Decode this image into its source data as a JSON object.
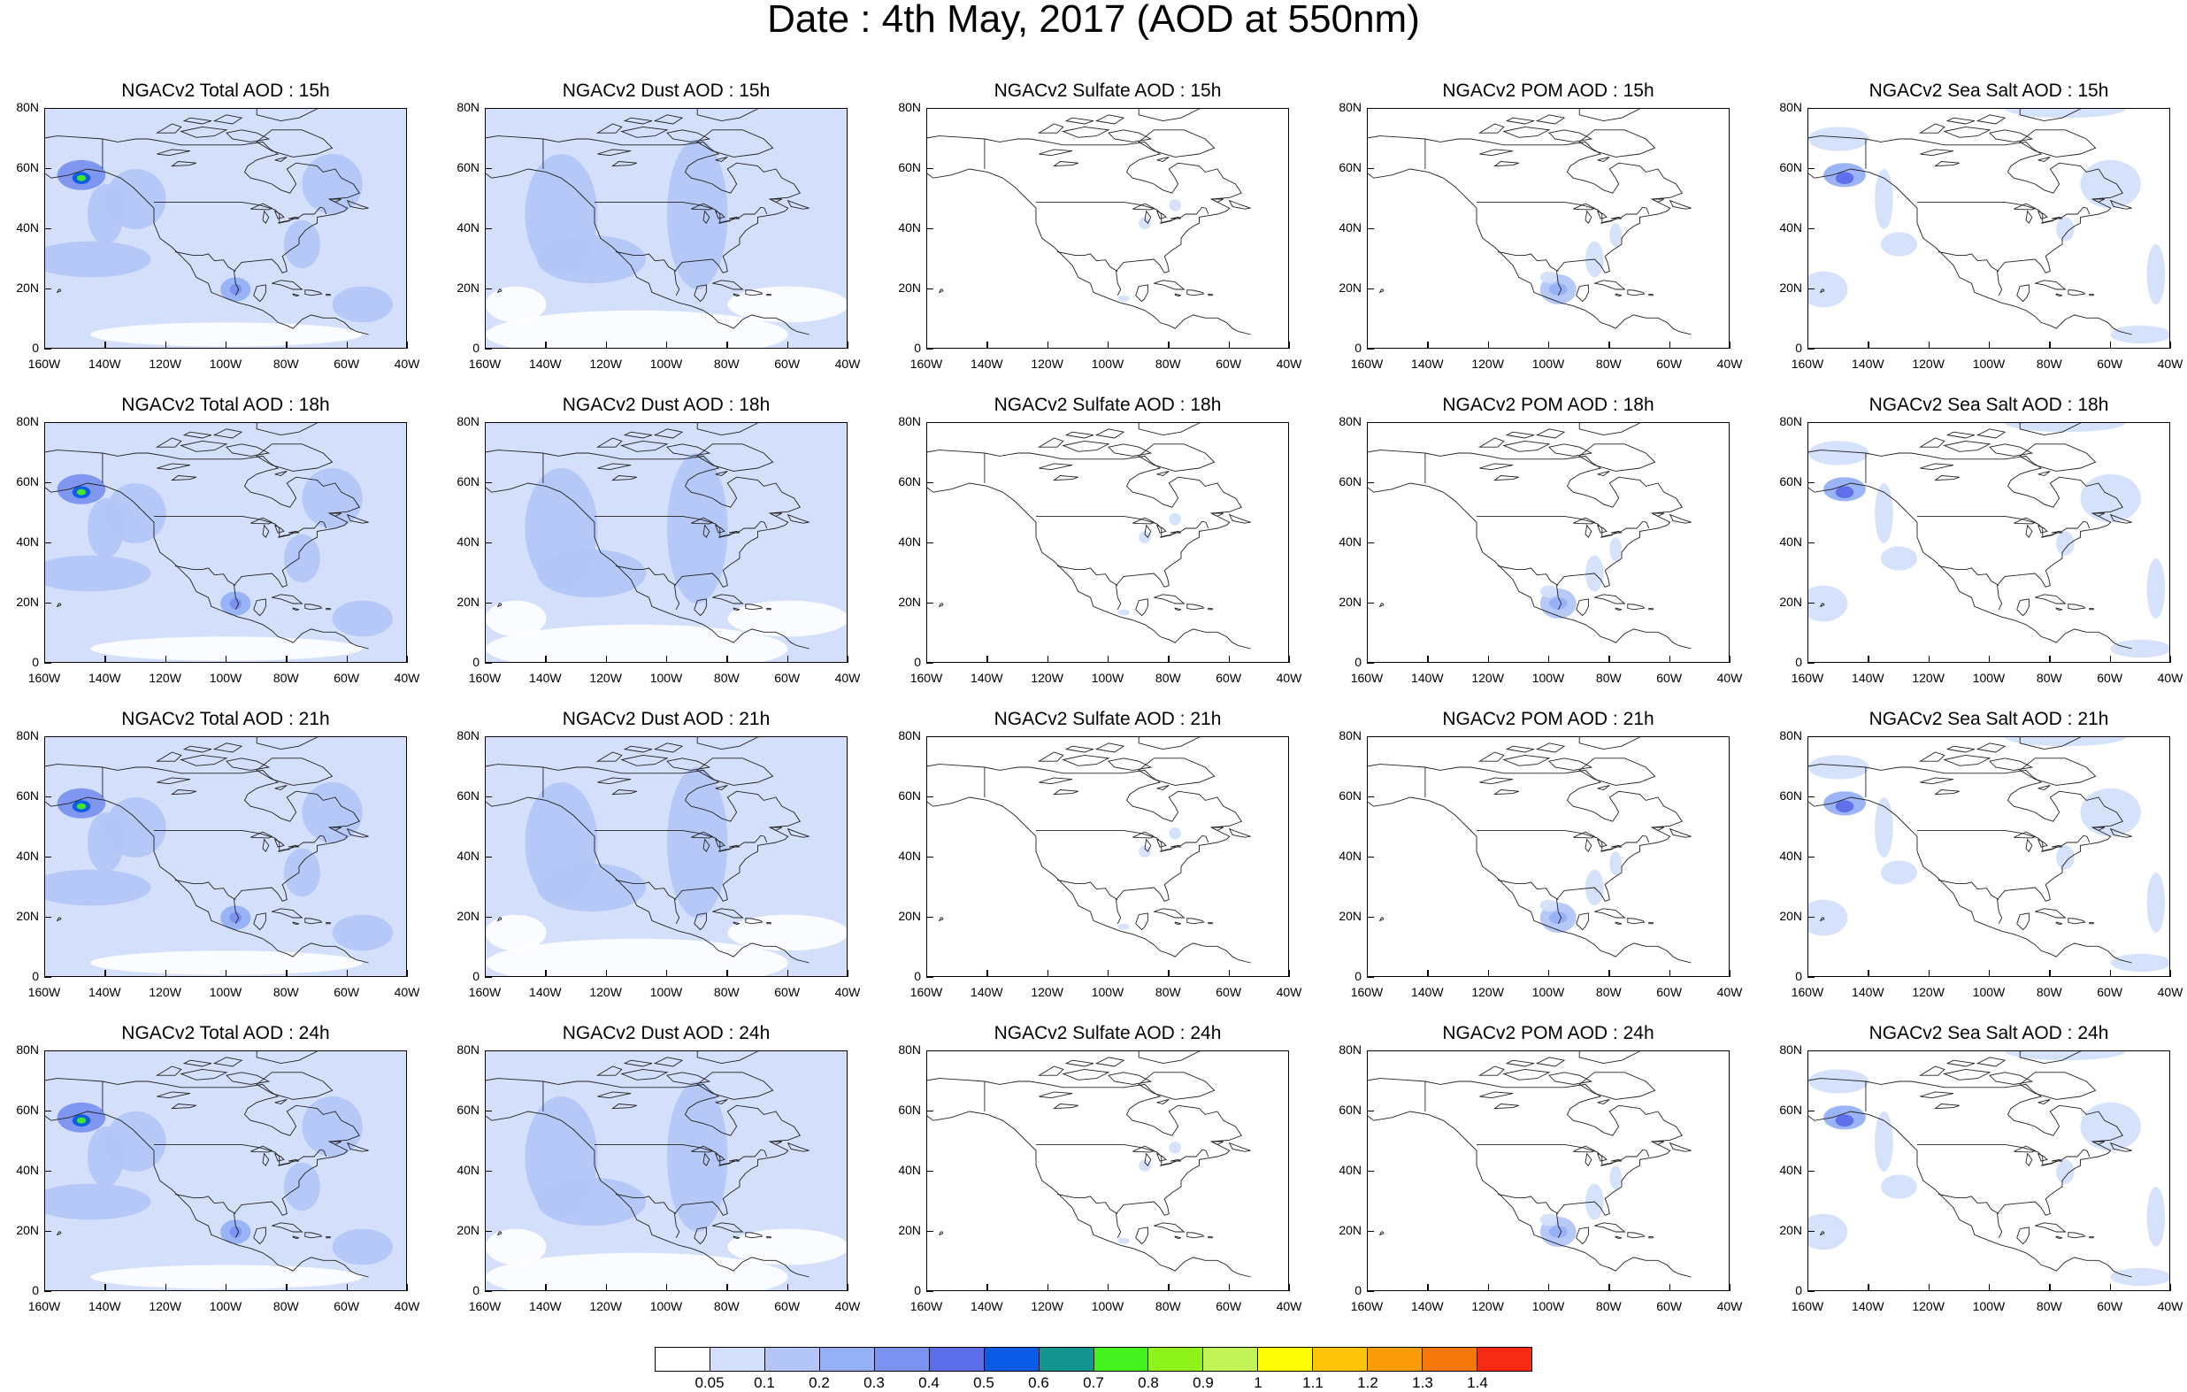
{
  "title": "Date : 4th May, 2017 (AOD at 550nm)",
  "chart_data": {
    "type": "heatmap",
    "title": "Date : 4th May, 2017 (AOD at 550nm)",
    "rows": [
      "15h",
      "18h",
      "21h",
      "24h"
    ],
    "columns": [
      "Total",
      "Dust",
      "Sulfate",
      "POM",
      "Sea Salt"
    ],
    "panel_titles": [
      [
        "NGACv2 Total AOD : 15h",
        "NGACv2 Dust AOD : 15h",
        "NGACv2 Sulfate AOD : 15h",
        "NGACv2 POM AOD : 15h",
        "NGACv2 Sea Salt AOD : 15h"
      ],
      [
        "NGACv2 Total AOD : 18h",
        "NGACv2 Dust AOD : 18h",
        "NGACv2 Sulfate AOD : 18h",
        "NGACv2 POM AOD : 18h",
        "NGACv2 Sea Salt AOD : 18h"
      ],
      [
        "NGACv2 Total AOD : 21h",
        "NGACv2 Dust AOD : 21h",
        "NGACv2 Sulfate AOD : 21h",
        "NGACv2 POM AOD : 21h",
        "NGACv2 Sea Salt AOD : 21h"
      ],
      [
        "NGACv2 Total AOD : 24h",
        "NGACv2 Dust AOD : 24h",
        "NGACv2 Sulfate AOD : 24h",
        "NGACv2 POM AOD : 24h",
        "NGACv2 Sea Salt  AOD : 24h"
      ]
    ],
    "x_ticks": [
      "160W",
      "140W",
      "120W",
      "100W",
      "80W",
      "60W",
      "40W"
    ],
    "y_ticks": [
      "80N",
      "60N",
      "40N",
      "20N",
      "0"
    ],
    "x_range": [
      -160,
      -40
    ],
    "y_range": [
      0,
      80
    ],
    "colorbar": {
      "levels": [
        "0.05",
        "0.1",
        "0.2",
        "0.3",
        "0.4",
        "0.5",
        "0.6",
        "0.7",
        "0.8",
        "0.9",
        "1",
        "1.1",
        "1.2",
        "1.3",
        "1.4"
      ],
      "colors": [
        "#ffffff",
        "#d4dffb",
        "#b3c6f7",
        "#95b0f5",
        "#7a92f0",
        "#5c6de9",
        "#0a5be6",
        "#14958f",
        "#45f01f",
        "#8ef21b",
        "#c2f45a",
        "#fffc05",
        "#fdc40a",
        "#fc9c08",
        "#f57609",
        "#f72b14"
      ]
    },
    "grid": false
  }
}
